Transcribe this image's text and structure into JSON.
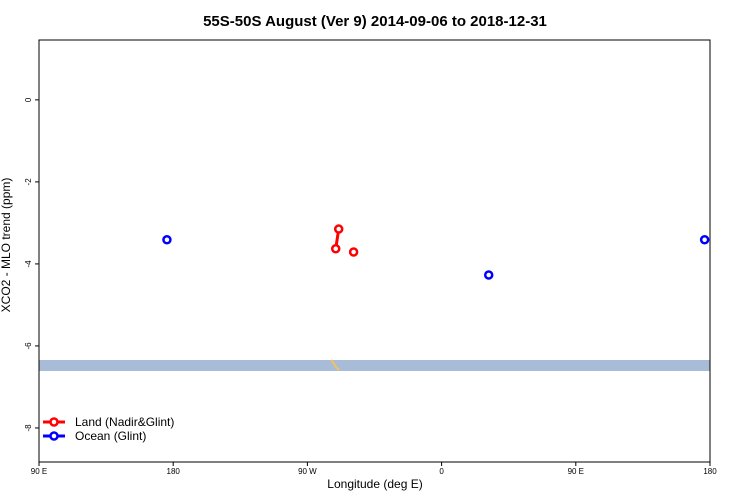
{
  "chart_data": {
    "type": "line",
    "title": "55S-50S August (Ver 9)   2014-09-06 to 2018-12-31",
    "x_label": "Longitude (deg E)",
    "y_label": "XCO2 - MLO trend (ppm)",
    "xlim": [
      90,
      540
    ],
    "ylim": [
      -8.83,
      1.46
    ],
    "xticks": [
      {
        "value": 90,
        "label": "90 E"
      },
      180,
      {
        "value": 270,
        "label": "90 W"
      },
      {
        "value": 360,
        "label": "0"
      },
      {
        "value": 450,
        "label": "90 E"
      },
      {
        "value": 540,
        "label": "180"
      }
    ],
    "yticks": [
      0,
      -2,
      -4,
      -6,
      -8
    ],
    "legend": "bottom-left",
    "series": [
      {
        "name": "Land (Nadir&Glint)",
        "color": "#ff0000",
        "x": [
          289,
          291,
          null,
          301
        ],
        "values": [
          -3.63,
          -3.15,
          null,
          -3.71
        ]
      },
      {
        "name": "Ocean (Glint)",
        "color": "#0000ff",
        "x": [
          175.8,
          null,
          391.6,
          null,
          536.4
        ],
        "values": [
          -3.41,
          null,
          -4.27,
          null,
          -3.41
        ]
      }
    ]
  }
}
